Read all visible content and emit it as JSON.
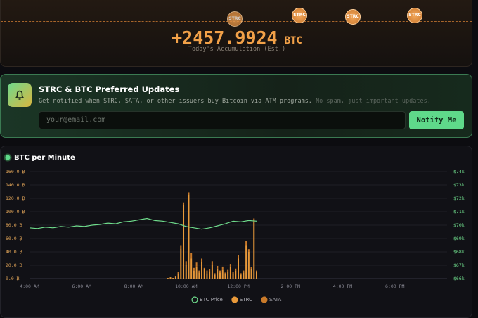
{
  "header": {
    "coins": [
      "STRC",
      "STRC",
      "STRC",
      "STRC"
    ],
    "amount": "+2457.9924",
    "unit": "BTC",
    "caption": "Today's Accumulation (Est.)"
  },
  "signup": {
    "title": "STRC & BTC Preferred Updates",
    "description": "Get notified when STRC, SATA, or other issuers buy Bitcoin via ATM programs.",
    "note": "No spam, just important updates.",
    "placeholder": "your@email.com",
    "button": "Notify Me"
  },
  "chart_data": {
    "type": "bar",
    "title": "BTC per Minute",
    "xlim": [
      4,
      20
    ],
    "xticks": [
      {
        "value": 4,
        "label": "4:00 AM"
      },
      {
        "value": 6,
        "label": "6:00 AM"
      },
      {
        "value": 8,
        "label": "8:00 AM"
      },
      {
        "value": 10,
        "label": "10:00 AM"
      },
      {
        "value": 12,
        "label": "12:00 PM"
      },
      {
        "value": 14,
        "label": "2:00 PM"
      },
      {
        "value": 16,
        "label": "4:00 PM"
      },
      {
        "value": 18,
        "label": "6:00 PM"
      }
    ],
    "ylim": [
      0,
      160
    ],
    "yticks": [
      {
        "value": 0,
        "label": "0.0 ₿"
      },
      {
        "value": 20,
        "label": "20.0 ₿"
      },
      {
        "value": 40,
        "label": "40.0 ₿"
      },
      {
        "value": 60,
        "label": "60.0 ₿"
      },
      {
        "value": 80,
        "label": "80.0 ₿"
      },
      {
        "value": 100,
        "label": "100.0 ₿"
      },
      {
        "value": 120,
        "label": "120.0 ₿"
      },
      {
        "value": 140,
        "label": "140.0 ₿"
      },
      {
        "value": 160,
        "label": "160.0 ₿"
      }
    ],
    "y2lim": [
      66000,
      74000
    ],
    "y2ticks": [
      {
        "value": 66000,
        "label": "$66k"
      },
      {
        "value": 67000,
        "label": "$67k"
      },
      {
        "value": 68000,
        "label": "$68k"
      },
      {
        "value": 69000,
        "label": "$69k"
      },
      {
        "value": 70000,
        "label": "$70k"
      },
      {
        "value": 71000,
        "label": "$71k"
      },
      {
        "value": 72000,
        "label": "$72k"
      },
      {
        "value": 73000,
        "label": "$73k"
      },
      {
        "value": 74000,
        "label": "$74k"
      }
    ],
    "grid": true,
    "series": [
      {
        "name": "BTC Price",
        "type": "line",
        "axis": "y2",
        "color": "#6fdc8c",
        "x": [
          4.0,
          4.3,
          4.6,
          4.9,
          5.2,
          5.5,
          5.8,
          6.1,
          6.4,
          6.7,
          7.0,
          7.3,
          7.6,
          7.9,
          8.2,
          8.5,
          8.8,
          9.1,
          9.4,
          9.7,
          10.0,
          10.3,
          10.6,
          10.9,
          11.2,
          11.5,
          11.8,
          12.1,
          12.4,
          12.7
        ],
        "values": [
          69800,
          69750,
          69850,
          69800,
          69900,
          69850,
          69950,
          69900,
          70000,
          70050,
          70150,
          70100,
          70250,
          70300,
          70400,
          70500,
          70350,
          70300,
          70200,
          70100,
          69900,
          69800,
          69700,
          69800,
          69950,
          70100,
          70300,
          70250,
          70350,
          70300
        ]
      },
      {
        "name": "STRC",
        "type": "bar",
        "color": "#e8993a",
        "x": [
          9.3,
          9.4,
          9.5,
          9.6,
          9.7,
          9.8,
          9.9,
          10.0,
          10.1,
          10.2,
          10.3,
          10.4,
          10.5,
          10.6,
          10.7,
          10.8,
          10.9,
          11.0,
          11.1,
          11.2,
          11.3,
          11.4,
          11.5,
          11.6,
          11.7,
          11.8,
          11.9,
          12.0,
          12.1,
          12.2,
          12.3,
          12.4,
          12.5,
          12.6,
          12.7
        ],
        "values": [
          1,
          2,
          1,
          3,
          8,
          45,
          110,
          20,
          126,
          30,
          12,
          18,
          9,
          25,
          14,
          8,
          11,
          20,
          6,
          15,
          9,
          13,
          7,
          10,
          18,
          8,
          12,
          30,
          6,
          9,
          50,
          40,
          14,
          85,
          10
        ]
      },
      {
        "name": "SATA",
        "type": "bar",
        "color": "#c97a2a",
        "x": [
          9.3,
          9.4,
          9.5,
          9.6,
          9.7,
          9.8,
          9.9,
          10.0,
          10.1,
          10.2,
          10.3,
          10.4,
          10.5,
          10.6,
          10.7,
          10.8,
          10.9,
          11.0,
          11.1,
          11.2,
          11.3,
          11.4,
          11.5,
          11.6,
          11.7,
          11.8,
          11.9,
          12.0,
          12.1,
          12.2,
          12.3,
          12.4,
          12.5,
          12.6,
          12.7
        ],
        "values": [
          0,
          0,
          0,
          1,
          2,
          5,
          4,
          6,
          3,
          8,
          4,
          6,
          3,
          5,
          2,
          4,
          3,
          6,
          2,
          4,
          3,
          5,
          2,
          3,
          4,
          2,
          3,
          5,
          2,
          3,
          6,
          4,
          3,
          5,
          2
        ]
      }
    ]
  }
}
